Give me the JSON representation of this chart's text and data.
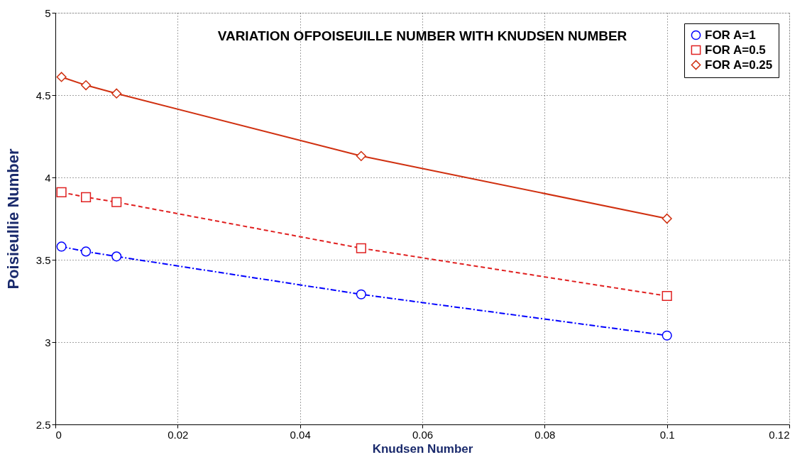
{
  "chart_data": {
    "type": "line",
    "title": "VARIATION OFPOISEUILLE NUMBER WITH KNUDSEN NUMBER",
    "xlabel": "Knudsen Number",
    "ylabel": "Poisieullie Number",
    "x": [
      0.001,
      0.005,
      0.01,
      0.05,
      0.1
    ],
    "series": [
      {
        "name": "FOR A=1",
        "color": "#0000ff",
        "values": [
          3.58,
          3.55,
          3.52,
          3.29,
          3.04
        ],
        "marker": "circle",
        "line_style": "dashdot"
      },
      {
        "name": "FOR A=0.5",
        "color": "#e02020",
        "values": [
          3.91,
          3.88,
          3.85,
          3.57,
          3.28
        ],
        "marker": "square",
        "line_style": "dashed"
      },
      {
        "name": "FOR A=0.25",
        "color": "#d03010",
        "values": [
          4.61,
          4.56,
          4.51,
          4.13,
          3.75
        ],
        "marker": "diamond",
        "line_style": "solid"
      }
    ],
    "xlim": [
      0,
      0.12
    ],
    "xticks": [
      0,
      0.02,
      0.04,
      0.06,
      0.08,
      0.1,
      0.12
    ],
    "ylim": [
      2.5,
      5
    ],
    "yticks": [
      2.5,
      3,
      3.5,
      4,
      4.5,
      5
    ],
    "grid": true,
    "legend": "top right"
  }
}
